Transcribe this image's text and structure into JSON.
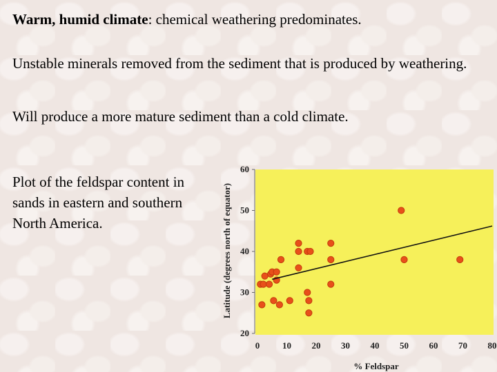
{
  "text": {
    "line1_bold": "Warm, humid climate",
    "line1_rest": ": chemical weathering predominates.",
    "line2": "Unstable minerals removed from the sediment that is produced by weathering.",
    "line3": "Will produce a more mature sediment than a cold climate.",
    "caption": "Plot of the feldspar content in sands in eastern and southern North America."
  },
  "colors": {
    "plot_background": "#f6f05a",
    "point_fill": "#e8501a",
    "point_stroke": "#c23a0c",
    "trend_line": "#111111"
  },
  "chart_data": {
    "type": "scatter",
    "title": "",
    "xlabel": "% Feldspar",
    "ylabel": "Latitude (degrees north of equator)",
    "xlim": [
      0,
      80
    ],
    "ylim": [
      20,
      60
    ],
    "xticks": [
      0,
      10,
      20,
      30,
      40,
      50,
      60,
      70,
      80
    ],
    "yticks": [
      20,
      30,
      40,
      50,
      60
    ],
    "grid": false,
    "legend": "none",
    "points": [
      {
        "x": 1,
        "y": 32
      },
      {
        "x": 2,
        "y": 32
      },
      {
        "x": 1.5,
        "y": 27
      },
      {
        "x": 2.5,
        "y": 34
      },
      {
        "x": 4,
        "y": 32
      },
      {
        "x": 4.5,
        "y": 34.5
      },
      {
        "x": 5,
        "y": 35
      },
      {
        "x": 5.5,
        "y": 28
      },
      {
        "x": 6.5,
        "y": 35
      },
      {
        "x": 6.5,
        "y": 33
      },
      {
        "x": 7.5,
        "y": 27
      },
      {
        "x": 8,
        "y": 38
      },
      {
        "x": 11,
        "y": 28
      },
      {
        "x": 14,
        "y": 36
      },
      {
        "x": 14,
        "y": 40
      },
      {
        "x": 14,
        "y": 42
      },
      {
        "x": 17,
        "y": 30
      },
      {
        "x": 17,
        "y": 40
      },
      {
        "x": 17.5,
        "y": 25
      },
      {
        "x": 17.5,
        "y": 28
      },
      {
        "x": 18,
        "y": 40
      },
      {
        "x": 25,
        "y": 32
      },
      {
        "x": 25,
        "y": 38
      },
      {
        "x": 25,
        "y": 42
      },
      {
        "x": 49,
        "y": 50
      },
      {
        "x": 50,
        "y": 38
      },
      {
        "x": 69,
        "y": 38
      }
    ],
    "trend_line": {
      "x": [
        5,
        80
      ],
      "y": [
        33.2,
        46.2
      ]
    }
  }
}
